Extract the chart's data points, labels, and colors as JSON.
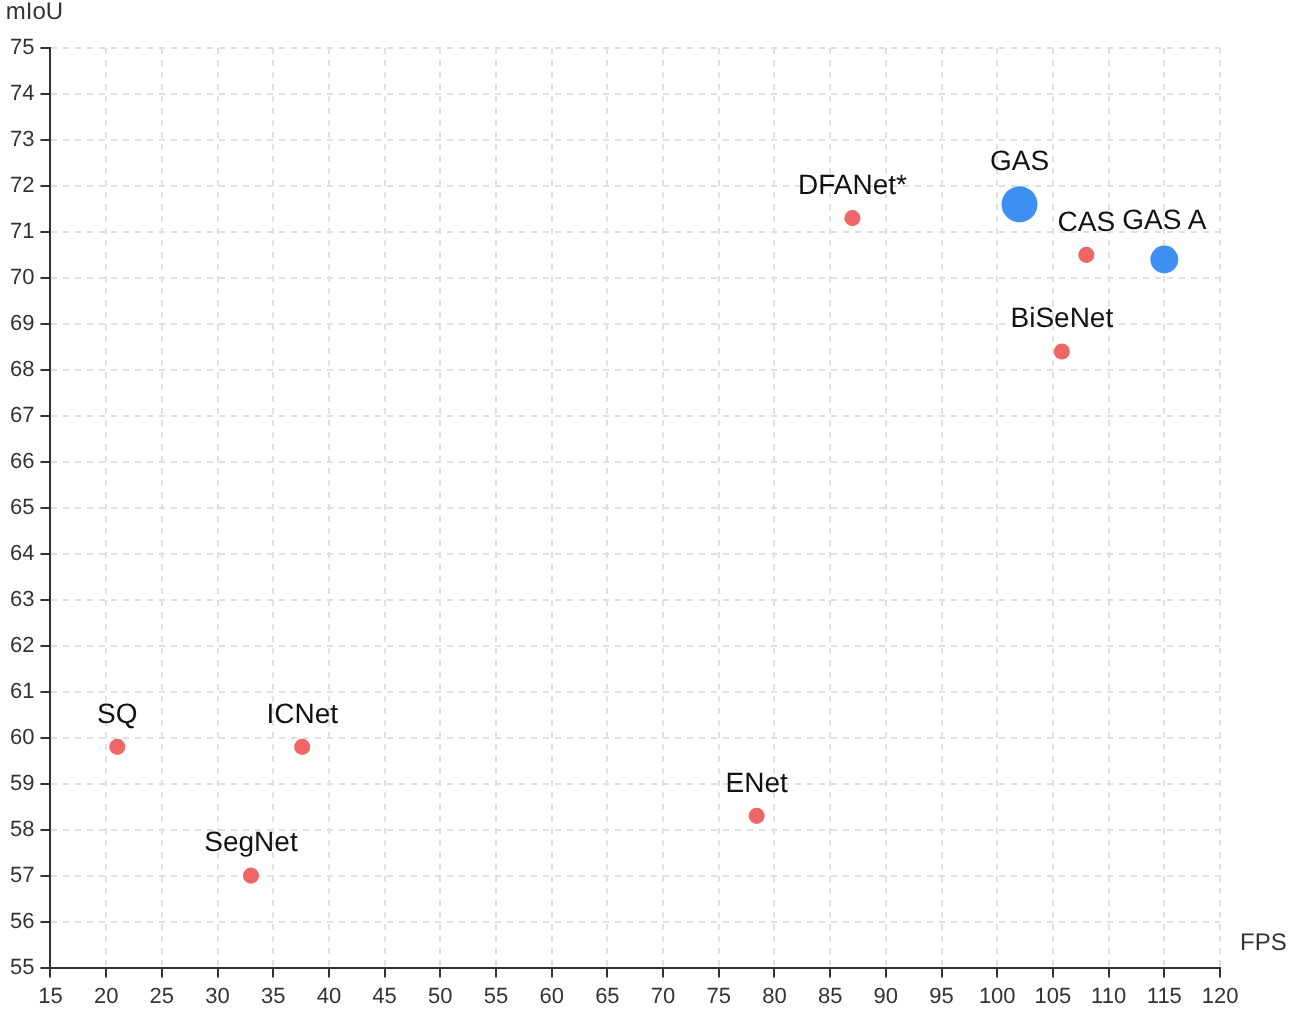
{
  "chart_data": {
    "type": "bubble",
    "xlabel": "FPS",
    "ylabel": "mIoU",
    "xlim": [
      15,
      120
    ],
    "xticks": [
      15,
      20,
      25,
      30,
      35,
      40,
      45,
      50,
      55,
      60,
      65,
      70,
      75,
      80,
      85,
      90,
      95,
      100,
      105,
      110,
      115,
      120
    ],
    "ylim": [
      55,
      75
    ],
    "yticks": [
      55,
      56,
      57,
      58,
      59,
      60,
      61,
      62,
      63,
      64,
      65,
      66,
      67,
      68,
      69,
      70,
      71,
      72,
      73,
      74,
      75
    ],
    "grid": true,
    "legend": false,
    "series": [
      {
        "color": "#ee6666",
        "x": [
          21,
          37.6,
          33,
          78.4,
          87,
          105.8,
          108
        ],
        "values": [
          59.8,
          59.8,
          57.0,
          58.3,
          71.3,
          68.4,
          70.5
        ],
        "sizes": [
          0.2,
          0.2,
          0.2,
          0.2,
          0.2,
          0.2,
          0.2
        ]
      },
      {
        "color": "#3d8ff2",
        "x": [
          102,
          115
        ],
        "values": [
          71.6,
          70.4
        ],
        "sizes": [
          1,
          0.6
        ]
      }
    ],
    "annotations": [
      {
        "text": "SQ",
        "x": 21,
        "y": 59.8
      },
      {
        "text": "ICNet",
        "x": 37.6,
        "y": 59.8
      },
      {
        "text": "SegNet",
        "x": 33,
        "y": 57.0
      },
      {
        "text": "ENet",
        "x": 78.4,
        "y": 58.3
      },
      {
        "text": "DFANet*",
        "x": 87,
        "y": 71.3
      },
      {
        "text": "BiSeNet",
        "x": 105.8,
        "y": 68.4
      },
      {
        "text": "CAS",
        "x": 108,
        "y": 70.5
      },
      {
        "text": "GAS",
        "x": 102,
        "y": 71.6
      },
      {
        "text": "GAS A",
        "x": 115,
        "y": 70.4
      }
    ]
  }
}
